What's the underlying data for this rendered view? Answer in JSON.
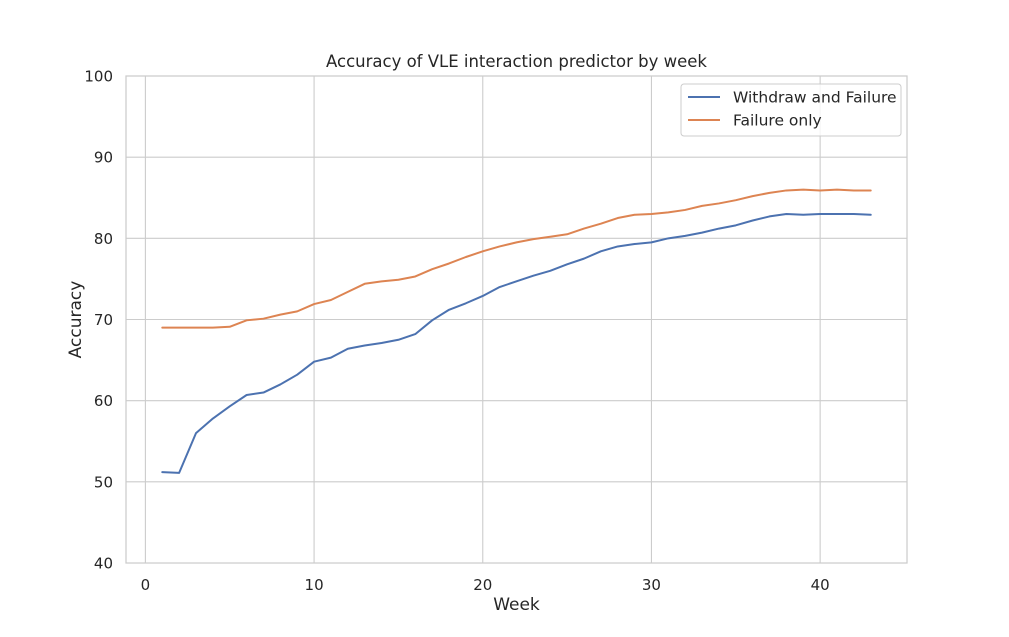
{
  "chart_data": {
    "type": "line",
    "title": "Accuracy of VLE interaction predictor by week",
    "xlabel": "Week",
    "ylabel": "Accuracy",
    "xlim": [
      -1.15,
      45.15
    ],
    "ylim": [
      40,
      100
    ],
    "xticks": [
      0,
      10,
      20,
      30,
      40
    ],
    "yticks": [
      40,
      50,
      60,
      70,
      80,
      90,
      100
    ],
    "grid": true,
    "legend_position": "top-right",
    "x": [
      1,
      2,
      3,
      4,
      5,
      6,
      7,
      8,
      9,
      10,
      11,
      12,
      13,
      14,
      15,
      16,
      17,
      18,
      19,
      20,
      21,
      22,
      23,
      24,
      25,
      26,
      27,
      28,
      29,
      30,
      31,
      32,
      33,
      34,
      35,
      36,
      37,
      38,
      39,
      40,
      41,
      42,
      43
    ],
    "series": [
      {
        "name": "Withdraw and Failure",
        "color": "#4c72b0",
        "values": [
          51.2,
          51.1,
          56.0,
          57.8,
          59.3,
          60.7,
          61.0,
          62.0,
          63.2,
          64.8,
          65.3,
          66.4,
          66.8,
          67.1,
          67.5,
          68.2,
          69.9,
          71.2,
          72.0,
          72.9,
          74.0,
          74.7,
          75.4,
          76.0,
          76.8,
          77.5,
          78.4,
          79.0,
          79.3,
          79.5,
          80.0,
          80.3,
          80.7,
          81.2,
          81.6,
          82.2,
          82.7,
          83.0,
          82.9,
          83.0,
          83.0,
          83.0,
          82.9
        ]
      },
      {
        "name": "Failure only",
        "color": "#dd8452",
        "values": [
          69.0,
          69.0,
          69.0,
          69.0,
          69.1,
          69.9,
          70.1,
          70.6,
          71.0,
          71.9,
          72.4,
          73.4,
          74.4,
          74.7,
          74.9,
          75.3,
          76.2,
          76.9,
          77.7,
          78.4,
          79.0,
          79.5,
          79.9,
          80.2,
          80.5,
          81.2,
          81.8,
          82.5,
          82.9,
          83.0,
          83.2,
          83.5,
          84.0,
          84.3,
          84.7,
          85.2,
          85.6,
          85.9,
          86.0,
          85.9,
          86.0,
          85.9,
          85.9
        ]
      }
    ]
  }
}
